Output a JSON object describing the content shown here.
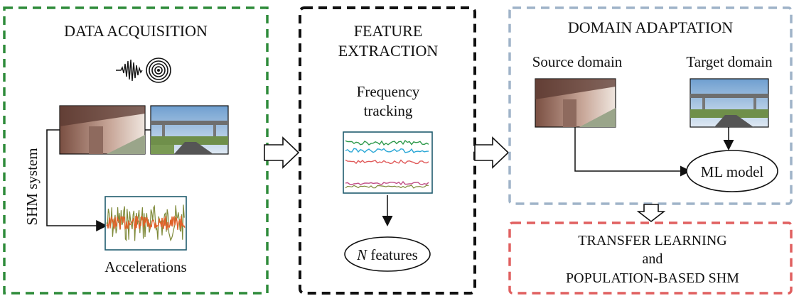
{
  "panels": {
    "acquisition": {
      "title": "DATA ACQUISITION",
      "system_label": "SHM system",
      "signal_label": "Accelerations",
      "border_color": "#2e8b3a"
    },
    "extraction": {
      "title_line1": "FEATURE",
      "title_line2": "EXTRACTION",
      "method_line1": "Frequency",
      "method_line2": "tracking",
      "output_var": "N",
      "output_rest": " features",
      "border_color": "#111111"
    },
    "adaptation": {
      "title": "DOMAIN ADAPTATION",
      "source_label": "Source domain",
      "target_label": "Target domain",
      "model_label": "ML model",
      "border_color": "#9fb3c8"
    },
    "transfer": {
      "line1": "TRANSFER LEARNING",
      "line2": "and",
      "line3": "POPULATION-BASED SHM",
      "border_color": "#e06060"
    }
  },
  "colors": {
    "track_green": "#2f9a4c",
    "track_cyan": "#2aa7d6",
    "track_red": "#e05a5a",
    "track_pink": "#c04d86",
    "accel_orange": "#e0622a",
    "accel_olive": "#7f8a3a",
    "sky": "#a9c8e6",
    "concrete": "#b8aca6"
  }
}
